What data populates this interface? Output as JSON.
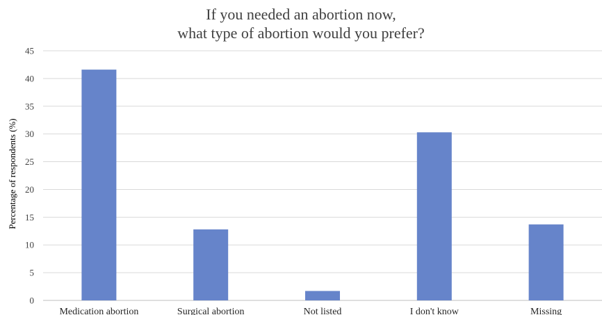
{
  "chart_data": {
    "type": "bar",
    "title_lines": [
      "If you needed an abortion now,",
      "what type of abortion would you prefer?"
    ],
    "xlabel": "",
    "ylabel": "Percentage of respondents (%)",
    "categories": [
      "Medication abortion",
      "Surgical abortion",
      "Not listed",
      "I don't know",
      "Missing"
    ],
    "values": [
      41.6,
      12.8,
      1.7,
      30.3,
      13.7
    ],
    "ylim": [
      0,
      45
    ],
    "yticks": [
      0,
      5,
      10,
      15,
      20,
      25,
      30,
      35,
      40,
      45
    ],
    "grid": true,
    "legend": false,
    "colors": {
      "bar": "#6684CA",
      "grid": "#D9D9D9",
      "axis": "#BFBFBF"
    }
  }
}
